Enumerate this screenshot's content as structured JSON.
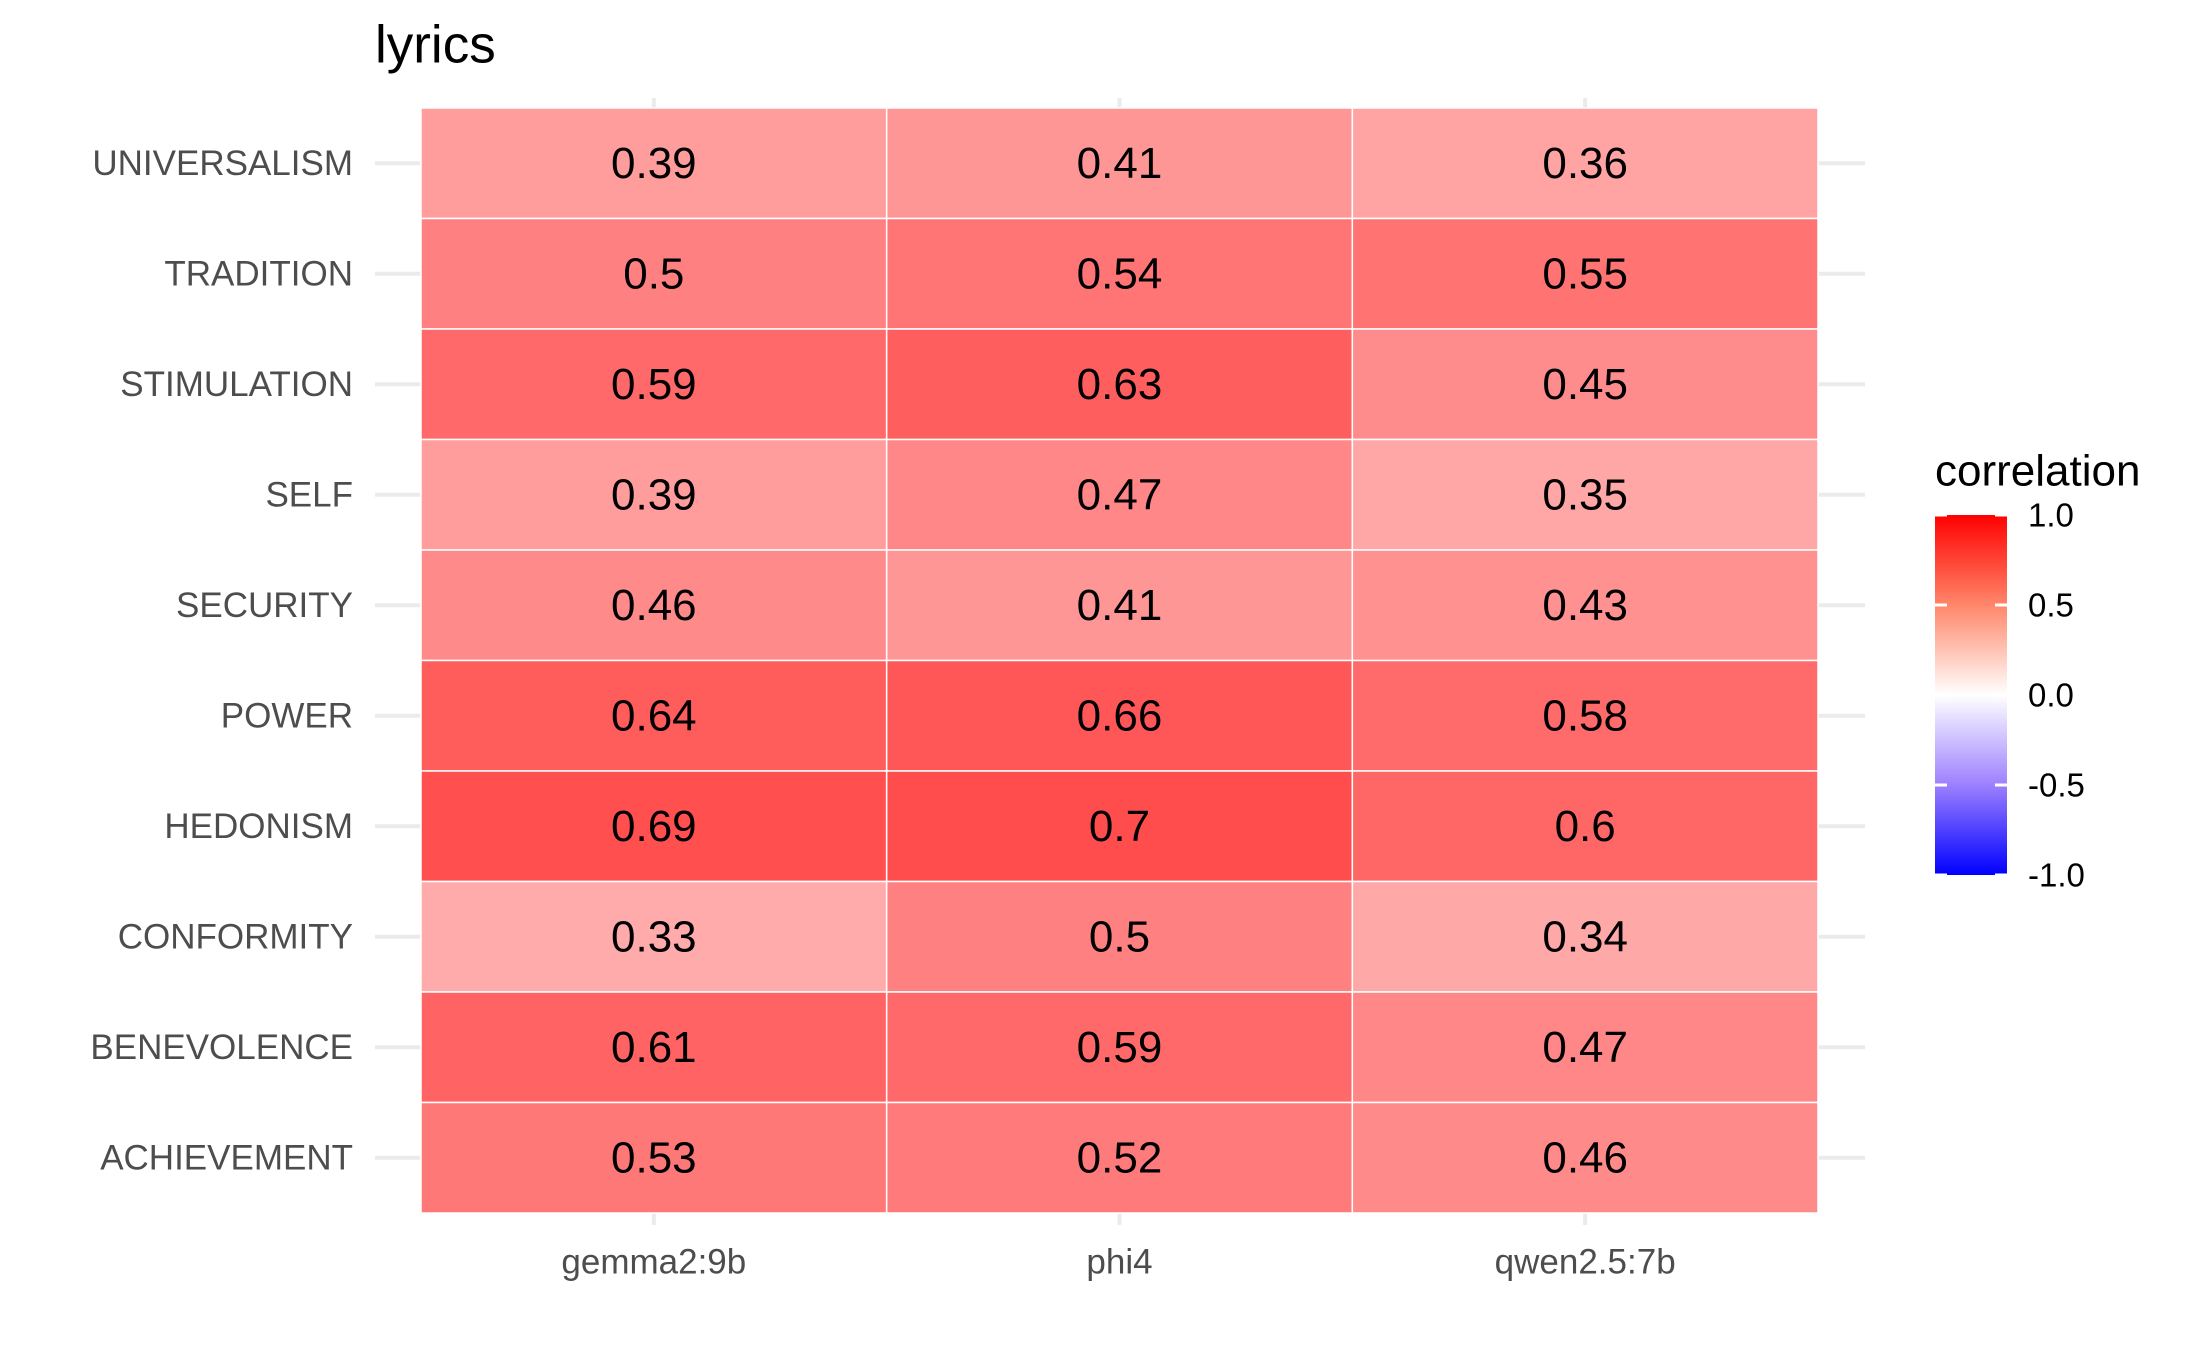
{
  "chart_data": {
    "type": "heatmap",
    "title": "lyrics",
    "xlabel": "",
    "ylabel": "",
    "x_categories": [
      "gemma2:9b",
      "phi4",
      "qwen2.5:7b"
    ],
    "y_categories": [
      "UNIVERSALISM",
      "TRADITION",
      "STIMULATION",
      "SELF",
      "SECURITY",
      "POWER",
      "HEDONISM",
      "CONFORMITY",
      "BENEVOLENCE",
      "ACHIEVEMENT"
    ],
    "values": [
      [
        0.39,
        0.41,
        0.36
      ],
      [
        0.5,
        0.54,
        0.55
      ],
      [
        0.59,
        0.63,
        0.45
      ],
      [
        0.39,
        0.47,
        0.35
      ],
      [
        0.46,
        0.41,
        0.43
      ],
      [
        0.64,
        0.66,
        0.58
      ],
      [
        0.69,
        0.7,
        0.6
      ],
      [
        0.33,
        0.5,
        0.34
      ],
      [
        0.61,
        0.59,
        0.47
      ],
      [
        0.53,
        0.52,
        0.46
      ]
    ],
    "legend": {
      "title": "correlation",
      "ticks": [
        "1.0",
        "0.5",
        "0.0",
        "-0.5",
        "-1.0"
      ],
      "tick_values": [
        1.0,
        0.5,
        0.0,
        -0.5,
        -1.0
      ],
      "range": [
        -1.0,
        1.0
      ],
      "position": "right"
    },
    "colors": {
      "low": "#0000ff",
      "mid": "#ffffff",
      "high": "#ff0000"
    },
    "grid": true
  }
}
